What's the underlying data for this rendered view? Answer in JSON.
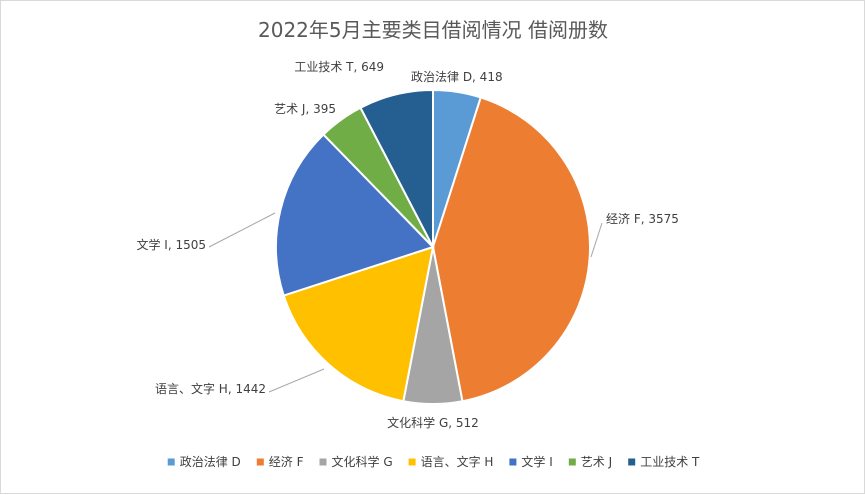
{
  "chart_data": {
    "type": "pie",
    "title": "2022年5月主要类目借阅情况 借阅册数",
    "slices": [
      {
        "name": "政治法律 D",
        "value": 418,
        "color": "#5B9BD5"
      },
      {
        "name": "经济 F",
        "value": 3575,
        "color": "#ED7D31"
      },
      {
        "name": "文化科学 G",
        "value": 512,
        "color": "#A5A5A5"
      },
      {
        "name": "语言、文字 H",
        "value": 1442,
        "color": "#FFC000"
      },
      {
        "name": "文学 I",
        "value": 1505,
        "color": "#4472C4"
      },
      {
        "name": "艺术 J",
        "value": 395,
        "color": "#70AD47"
      },
      {
        "name": "工业技术 T",
        "value": 649,
        "color": "#255E91"
      }
    ],
    "data_labels": [
      "政治法律 D, 418",
      "经济 F, 3575",
      "文化科学 G, 512",
      "语言、文字 H, 1442",
      "文学 I, 1505",
      "艺术 J, 395",
      "工业技术 T, 649"
    ],
    "legend_position": "bottom"
  }
}
